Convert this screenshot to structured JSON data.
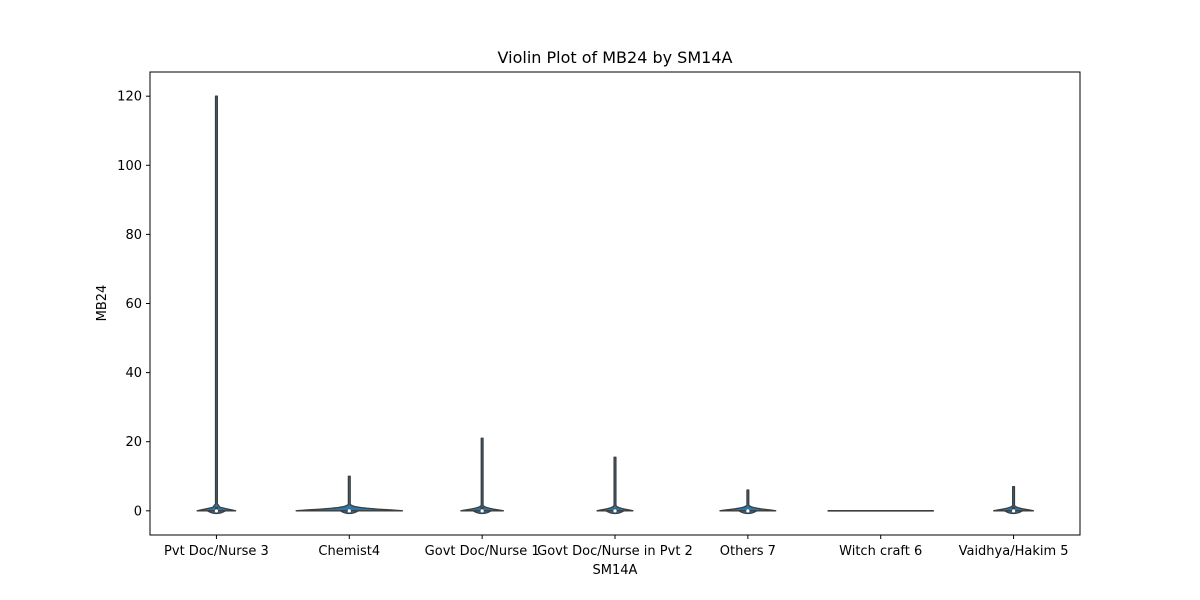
{
  "chart_data": {
    "type": "violin",
    "title": "Violin Plot of MB24 by SM14A",
    "xlabel": "SM14A",
    "ylabel": "MB24",
    "ylim": [
      -7,
      127
    ],
    "yticks": [
      0,
      20,
      40,
      60,
      80,
      100,
      120
    ],
    "grid": false,
    "legend": "none",
    "color": "#3274a1",
    "categories": [
      "Pvt Doc/Nurse 3",
      "Chemist4",
      "Govt Doc/Nurse 1",
      "Govt Doc/Nurse in Pvt 2",
      "Others 7",
      "Witch craft 6",
      "Vaidhya/Hakim 5"
    ],
    "violins": [
      {
        "category": "Pvt Doc/Nurse 3",
        "min": 0,
        "max": 120,
        "q1": 0,
        "median": 0,
        "q3": 1,
        "width": 0.29
      },
      {
        "category": "Chemist4",
        "min": 0,
        "max": 10,
        "q1": 0,
        "median": 0,
        "q3": 0,
        "width": 0.8
      },
      {
        "category": "Govt Doc/Nurse 1",
        "min": 0,
        "max": 21,
        "q1": 0,
        "median": 0,
        "q3": 1,
        "width": 0.32
      },
      {
        "category": "Govt Doc/Nurse in Pvt 2",
        "min": 0,
        "max": 15.5,
        "q1": 0,
        "median": 0,
        "q3": 0.5,
        "width": 0.27
      },
      {
        "category": "Others 7",
        "min": 0,
        "max": 6,
        "q1": 0,
        "median": 0,
        "q3": 0,
        "width": 0.42
      },
      {
        "category": "Witch craft 6",
        "min": 0,
        "max": 0,
        "q1": 0,
        "median": 0,
        "q3": 0,
        "width": 0.8
      },
      {
        "category": "Vaidhya/Hakim 5",
        "min": 0,
        "max": 7,
        "q1": 0,
        "median": 0,
        "q3": 1,
        "width": 0.3
      }
    ]
  }
}
